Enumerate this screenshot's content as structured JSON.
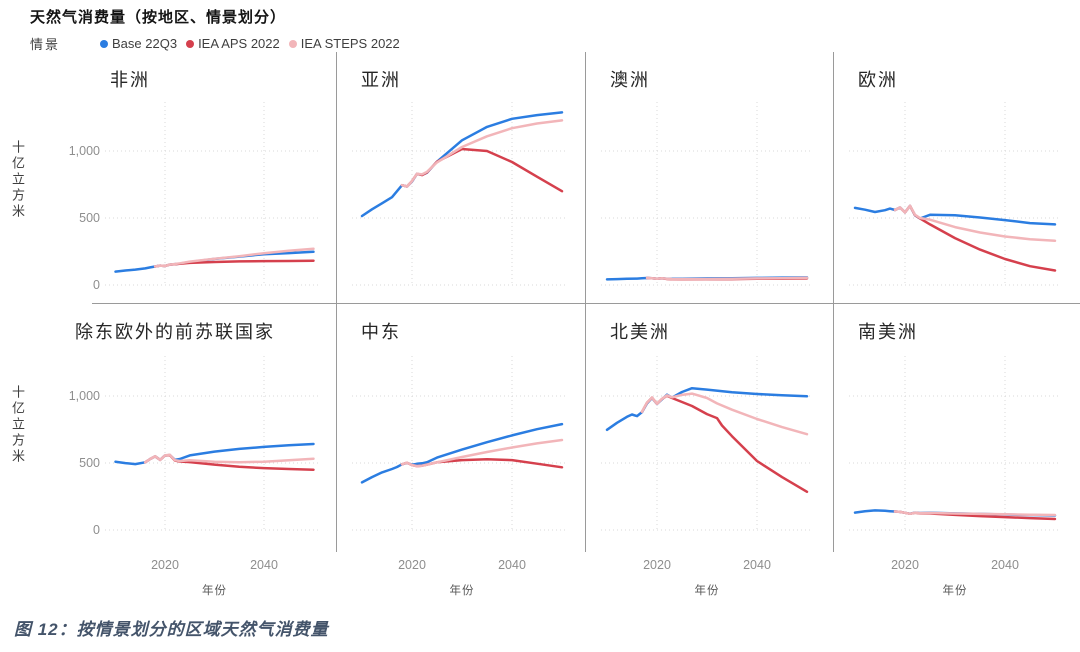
{
  "header": {
    "title": "天然气消费量（按地区、情景划分）"
  },
  "legend": {
    "label": "情景",
    "items": [
      {
        "label": "Base 22Q3",
        "color": "#2b7de1"
      },
      {
        "label": "IEA APS 2022",
        "color": "#d5404d"
      },
      {
        "label": "IEA STEPS 2022",
        "color": "#f2b5b9"
      }
    ]
  },
  "axis": {
    "y_unit_label": "十亿立方米",
    "x_label": "年份",
    "y_tick_labels": [
      "1,000",
      "500",
      "0"
    ],
    "x_tick_labels": [
      "2020",
      "2040"
    ]
  },
  "caption": {
    "text": "图 12：按情景划分的区域天然气消费量"
  },
  "colors": {
    "grid": "#d8d8d8",
    "divider": "#9a9a9a",
    "base": "#2b7de1",
    "aps": "#d5404d",
    "steps": "#f2b5b9"
  },
  "chart_data": {
    "type": "line",
    "layout": "facet-grid 4x2 (small multiples)",
    "title": "天然气消费量（按地区、情景划分）",
    "ylabel": "十亿立方米",
    "xlabel": "年份",
    "legend_title": "情景",
    "legend_position": "top",
    "grid": "dotted",
    "ylim": [
      0,
      1430
    ],
    "xlim": [
      2010,
      2050
    ],
    "y_ticks": [
      0,
      500,
      1000
    ],
    "x_ticks": [
      2020,
      2040
    ],
    "series_meta": [
      {
        "key": "base",
        "name": "Base 22Q3",
        "color": "#2b7de1"
      },
      {
        "key": "aps",
        "name": "IEA APS 2022",
        "color": "#d5404d"
      },
      {
        "key": "steps",
        "name": "IEA STEPS 2022",
        "color": "#f2b5b9"
      }
    ],
    "facets": [
      {
        "title": "非洲",
        "series": {
          "base": {
            "x": [
              2010,
              2012,
              2014,
              2016,
              2017,
              2018,
              2019,
              2020,
              2021,
              2022,
              2023,
              2025,
              2030,
              2035,
              2040,
              2045,
              2050
            ],
            "y": [
              100,
              108,
              115,
              124,
              131,
              138,
              145,
              142,
              152,
              156,
              160,
              172,
              195,
              212,
              230,
              238,
              248
            ]
          },
          "aps": {
            "x": [
              2018,
              2019,
              2020,
              2021,
              2022,
              2023,
              2025,
              2030,
              2035,
              2040,
              2045,
              2050
            ],
            "y": [
              138,
              145,
              142,
              152,
              155,
              158,
              165,
              172,
              176,
              178,
              179,
              181
            ]
          },
          "steps": {
            "x": [
              2018,
              2019,
              2020,
              2021,
              2022,
              2023,
              2025,
              2030,
              2035,
              2040,
              2045,
              2050
            ],
            "y": [
              138,
              145,
              142,
              152,
              157,
              162,
              175,
              196,
              215,
              237,
              255,
              270
            ]
          }
        }
      },
      {
        "title": "亚洲",
        "series": {
          "base": {
            "x": [
              2010,
              2012,
              2014,
              2016,
              2017,
              2018,
              2019,
              2020,
              2021,
              2022,
              2023,
              2025,
              2030,
              2035,
              2040,
              2045,
              2050
            ],
            "y": [
              515,
              565,
              610,
              655,
              700,
              745,
              735,
              772,
              830,
              822,
              838,
              920,
              1080,
              1180,
              1240,
              1268,
              1288
            ]
          },
          "aps": {
            "x": [
              2018,
              2019,
              2020,
              2021,
              2022,
              2023,
              2025,
              2030,
              2035,
              2040,
              2045,
              2050
            ],
            "y": [
              745,
              735,
              775,
              830,
              820,
              840,
              920,
              1015,
              1000,
              918,
              808,
              700
            ]
          },
          "steps": {
            "x": [
              2018,
              2019,
              2020,
              2021,
              2022,
              2023,
              2025,
              2030,
              2035,
              2040,
              2045,
              2050
            ],
            "y": [
              745,
              735,
              775,
              830,
              825,
              845,
              915,
              1030,
              1110,
              1170,
              1205,
              1228
            ]
          }
        }
      },
      {
        "title": "澳洲",
        "series": {
          "base": {
            "x": [
              2010,
              2012,
              2014,
              2016,
              2017,
              2018,
              2019,
              2020,
              2021,
              2022,
              2023,
              2025,
              2030,
              2035,
              2040,
              2045,
              2050
            ],
            "y": [
              42,
              44,
              46,
              48,
              50,
              52,
              50,
              47,
              50,
              47,
              46,
              47,
              49,
              51,
              53,
              55,
              57
            ]
          },
          "aps": {
            "x": [
              2018,
              2019,
              2020,
              2021,
              2022,
              2023,
              2025,
              2030,
              2035,
              2040,
              2045,
              2050
            ],
            "y": [
              52,
              50,
              47,
              50,
              45,
              43,
              42,
              43,
              44,
              46,
              47,
              49
            ]
          },
          "steps": {
            "x": [
              2018,
              2019,
              2020,
              2021,
              2022,
              2023,
              2025,
              2030,
              2035,
              2040,
              2045,
              2050
            ],
            "y": [
              52,
              50,
              47,
              50,
              46,
              45,
              44,
              45,
              47,
              49,
              51,
              54
            ]
          }
        }
      },
      {
        "title": "欧洲",
        "series": {
          "base": {
            "x": [
              2010,
              2012,
              2014,
              2016,
              2017,
              2018,
              2019,
              2020,
              2021,
              2022,
              2023,
              2025,
              2030,
              2035,
              2040,
              2045,
              2050
            ],
            "y": [
              575,
              562,
              545,
              558,
              570,
              560,
              578,
              542,
              590,
              520,
              496,
              524,
              520,
              504,
              484,
              462,
              452
            ]
          },
          "aps": {
            "x": [
              2018,
              2019,
              2020,
              2021,
              2022,
              2023,
              2025,
              2030,
              2035,
              2040,
              2045,
              2050
            ],
            "y": [
              560,
              578,
              542,
              590,
              522,
              497,
              452,
              350,
              264,
              194,
              140,
              108
            ]
          },
          "steps": {
            "x": [
              2018,
              2019,
              2020,
              2021,
              2022,
              2023,
              2025,
              2030,
              2035,
              2040,
              2045,
              2050
            ],
            "y": [
              560,
              578,
              542,
              590,
              524,
              500,
              487,
              432,
              392,
              362,
              342,
              330
            ]
          }
        }
      },
      {
        "title": "除东欧外的前苏联国家",
        "series": {
          "base": {
            "x": [
              2010,
              2012,
              2014,
              2016,
              2017,
              2018,
              2019,
              2020,
              2021,
              2022,
              2023,
              2025,
              2030,
              2035,
              2040,
              2045,
              2050
            ],
            "y": [
              510,
              499,
              492,
              505,
              530,
              550,
              524,
              556,
              560,
              524,
              530,
              557,
              585,
              605,
              620,
              632,
              642
            ]
          },
          "aps": {
            "x": [
              2016,
              2017,
              2018,
              2019,
              2020,
              2021,
              2022,
              2023,
              2025,
              2030,
              2035,
              2040,
              2045,
              2050
            ],
            "y": [
              505,
              530,
              550,
              523,
              556,
              559,
              519,
              511,
              507,
              488,
              472,
              462,
              455,
              450
            ]
          },
          "steps": {
            "x": [
              2016,
              2017,
              2018,
              2019,
              2020,
              2021,
              2022,
              2023,
              2025,
              2030,
              2035,
              2040,
              2045,
              2050
            ],
            "y": [
              505,
              530,
              551,
              523,
              557,
              561,
              521,
              515,
              520,
              510,
              506,
              510,
              520,
              532
            ]
          }
        }
      },
      {
        "title": "中东",
        "series": {
          "base": {
            "x": [
              2010,
              2012,
              2014,
              2016,
              2017,
              2018,
              2019,
              2020,
              2021,
              2022,
              2023,
              2025,
              2030,
              2035,
              2040,
              2045,
              2050
            ],
            "y": [
              355,
              395,
              430,
              455,
              470,
              490,
              501,
              487,
              494,
              498,
              506,
              540,
              600,
              655,
              706,
              752,
              790
            ]
          },
          "aps": {
            "x": [
              2018,
              2019,
              2020,
              2021,
              2022,
              2023,
              2025,
              2030,
              2035,
              2040,
              2045,
              2050
            ],
            "y": [
              490,
              502,
              484,
              477,
              480,
              488,
              505,
              522,
              528,
              522,
              495,
              468
            ]
          },
          "steps": {
            "x": [
              2018,
              2019,
              2020,
              2021,
              2022,
              2023,
              2025,
              2030,
              2035,
              2040,
              2045,
              2050
            ],
            "y": [
              490,
              502,
              484,
              477,
              480,
              488,
              505,
              545,
              582,
              616,
              646,
              672
            ]
          }
        }
      },
      {
        "title": "北美洲",
        "series": {
          "base": {
            "x": [
              2010,
              2012,
              2014,
              2015,
              2016,
              2017,
              2018,
              2019,
              2020,
              2021,
              2022,
              2023,
              2025,
              2027,
              2030,
              2035,
              2040,
              2045,
              2050
            ],
            "y": [
              748,
              800,
              845,
              862,
              850,
              880,
              945,
              985,
              940,
              975,
              1010,
              988,
              1030,
              1058,
              1048,
              1028,
              1015,
              1005,
              998
            ]
          },
          "aps": {
            "x": [
              2017,
              2018,
              2019,
              2020,
              2021,
              2022,
              2023,
              2025,
              2027,
              2030,
              2032,
              2033,
              2035,
              2040,
              2045,
              2050
            ],
            "y": [
              882,
              950,
              988,
              942,
              978,
              1002,
              985,
              955,
              925,
              865,
              835,
              780,
              700,
              515,
              395,
              285
            ]
          },
          "steps": {
            "x": [
              2017,
              2018,
              2019,
              2020,
              2021,
              2022,
              2023,
              2025,
              2027,
              2030,
              2032,
              2035,
              2040,
              2045,
              2050
            ],
            "y": [
              882,
              950,
              988,
              942,
              978,
              1005,
              990,
              1008,
              1018,
              985,
              945,
              898,
              828,
              768,
              715
            ]
          }
        }
      },
      {
        "title": "南美洲",
        "series": {
          "base": {
            "x": [
              2010,
              2012,
              2014,
              2016,
              2017,
              2018,
              2019,
              2020,
              2021,
              2022,
              2023,
              2025,
              2030,
              2035,
              2040,
              2045,
              2050
            ],
            "y": [
              130,
              140,
              146,
              143,
              140,
              138,
              135,
              128,
              122,
              130,
              127,
              128,
              124,
              120,
              116,
              112,
              108
            ]
          },
          "aps": {
            "x": [
              2018,
              2019,
              2020,
              2021,
              2022,
              2023,
              2025,
              2030,
              2035,
              2040,
              2045,
              2050
            ],
            "y": [
              138,
              135,
              128,
              121,
              128,
              124,
              123,
              113,
              104,
              96,
              89,
              82
            ]
          },
          "steps": {
            "x": [
              2018,
              2019,
              2020,
              2021,
              2022,
              2023,
              2025,
              2030,
              2035,
              2040,
              2045,
              2050
            ],
            "y": [
              138,
              135,
              128,
              121,
              129,
              126,
              127,
              123,
              120,
              117,
              114,
              112
            ]
          }
        }
      }
    ]
  }
}
